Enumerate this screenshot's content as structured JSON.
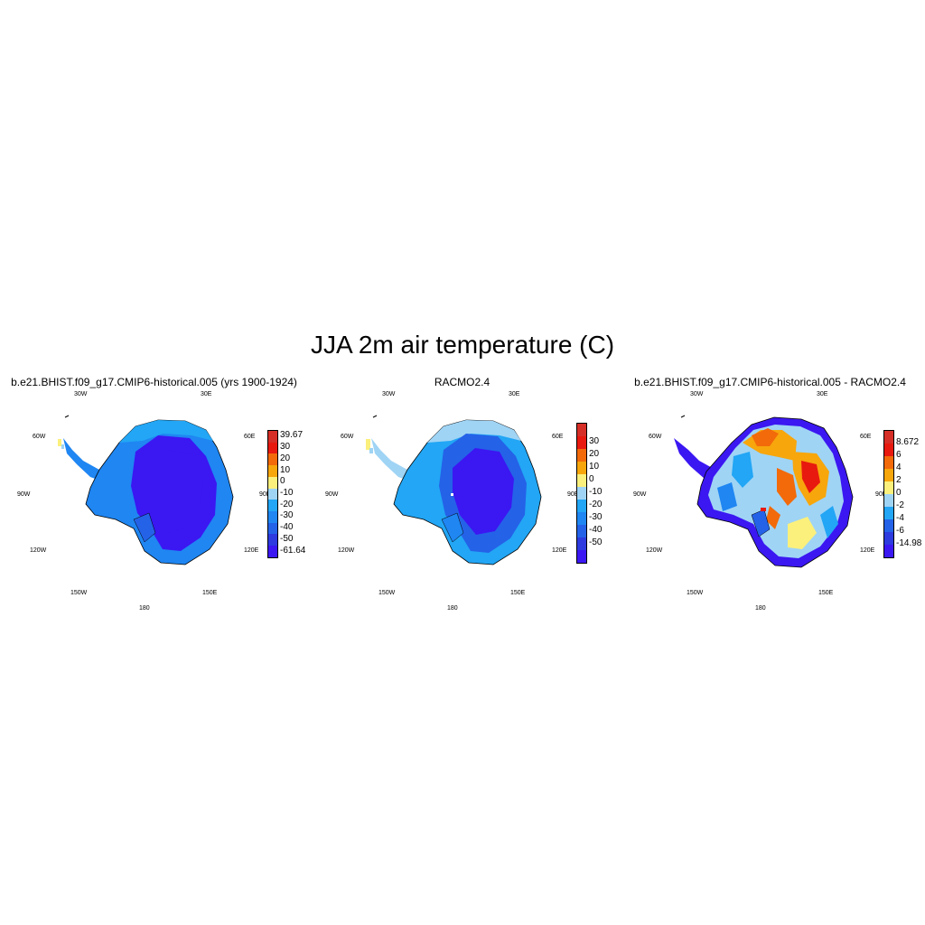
{
  "title": "JJA 2m air temperature (C)",
  "lon_labels": {
    "l30w": "30W",
    "l30e": "30E",
    "l60w": "60W",
    "l60e": "60E",
    "l90w": "90W",
    "l90e": "90E",
    "l120w": "120W",
    "l120e": "120E",
    "l150w": "150W",
    "l150e": "150E",
    "l180": "180"
  },
  "panels": [
    {
      "title": "b.e21.BHIST.f09_g17.CMIP6-historical.005 (yrs 1900-1924)",
      "colorbar": {
        "colors": [
          "#d62f27",
          "#e8190f",
          "#f26a0a",
          "#f7a60c",
          "#fbf07c",
          "#9fd4f5",
          "#22a6f5",
          "#1f86f2",
          "#2462e8",
          "#2d3bdf",
          "#3b17f2"
        ],
        "labels": [
          "39.67",
          "30",
          "20",
          "10",
          "0",
          "-10",
          "-20",
          "-30",
          "-40",
          "-50",
          "-61.64"
        ]
      }
    },
    {
      "title": "RACMO2.4",
      "colorbar": {
        "colors": [
          "#d62f27",
          "#e8190f",
          "#f26a0a",
          "#f7a60c",
          "#fbf07c",
          "#9fd4f5",
          "#22a6f5",
          "#1f86f2",
          "#2462e8",
          "#2d3bdf",
          "#3b17f2"
        ],
        "labels": [
          "30",
          "20",
          "10",
          "0",
          "-10",
          "-20",
          "-30",
          "-40",
          "-50"
        ]
      }
    },
    {
      "title": "b.e21.BHIST.f09_g17.CMIP6-historical.005 - RACMO2.4",
      "colorbar": {
        "colors": [
          "#d62f27",
          "#e8190f",
          "#f26a0a",
          "#f7a60c",
          "#fbf07c",
          "#9fd4f5",
          "#22a6f5",
          "#2462e8",
          "#2d3bdf",
          "#3b17f2"
        ],
        "labels": [
          "8.672",
          "6",
          "4",
          "2",
          "0",
          "-2",
          "-4",
          "-6",
          "-14.98"
        ]
      }
    }
  ]
}
